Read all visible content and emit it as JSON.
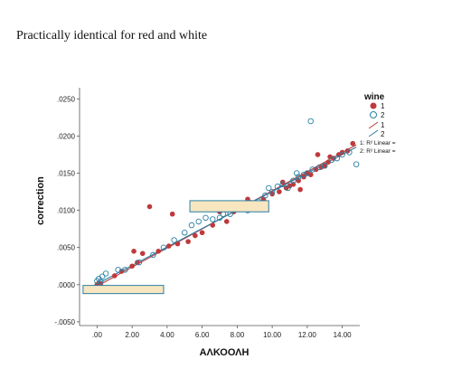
{
  "caption": "Practically identical for red and white",
  "chart_data": {
    "type": "scatter",
    "title": "",
    "xlabel": "ΑΛΚΟΟΛΗ",
    "ylabel": "correction",
    "xlim": [
      -1.0,
      15.0
    ],
    "ylim": [
      -0.0055,
      0.0265
    ],
    "x_ticks": [
      0,
      2,
      4,
      6,
      8,
      10,
      12,
      14
    ],
    "x_tick_labels": [
      ".00",
      "2.00",
      "4.00",
      "6.00",
      "8.00",
      "10.00",
      "12.00",
      "14.00"
    ],
    "y_ticks": [
      -0.005,
      0,
      0.005,
      0.01,
      0.015,
      0.02,
      0.025
    ],
    "y_tick_labels": [
      "-.0050",
      ".0000",
      ".0050",
      ".0100",
      ".0150",
      ".0200",
      ".0250"
    ],
    "grid": false,
    "legend_position": "top-right",
    "legend": {
      "title": "wine",
      "entries": [
        "1",
        "2",
        "1",
        "2"
      ],
      "fit_labels": [
        "1: R² Linear =",
        "2: R² Linear ="
      ]
    },
    "series": [
      {
        "name": "1",
        "marker": "filled-circle",
        "color": "#c0393b",
        "points": [
          [
            0.0,
            0.0
          ],
          [
            0.1,
            0.0002
          ],
          [
            0.2,
            0.0001
          ],
          [
            1.0,
            0.0012
          ],
          [
            1.4,
            0.0018
          ],
          [
            2.0,
            0.0025
          ],
          [
            2.1,
            0.0045
          ],
          [
            2.3,
            0.003
          ],
          [
            2.6,
            0.0042
          ],
          [
            3.0,
            0.0105
          ],
          [
            3.5,
            0.0045
          ],
          [
            4.1,
            0.0052
          ],
          [
            4.3,
            0.0095
          ],
          [
            4.6,
            0.0055
          ],
          [
            5.2,
            0.0058
          ],
          [
            5.6,
            0.0066
          ],
          [
            6.0,
            0.007
          ],
          [
            6.6,
            0.008
          ],
          [
            7.0,
            0.0098
          ],
          [
            7.4,
            0.0085
          ],
          [
            7.8,
            0.0098
          ],
          [
            8.2,
            0.0104
          ],
          [
            8.6,
            0.0115
          ],
          [
            9.0,
            0.011
          ],
          [
            9.5,
            0.0115
          ],
          [
            10.0,
            0.0122
          ],
          [
            10.4,
            0.0125
          ],
          [
            10.8,
            0.013
          ],
          [
            11.0,
            0.0133
          ],
          [
            11.2,
            0.0135
          ],
          [
            11.5,
            0.014
          ],
          [
            11.8,
            0.0145
          ],
          [
            12.0,
            0.015
          ],
          [
            12.2,
            0.0148
          ],
          [
            12.5,
            0.0155
          ],
          [
            12.8,
            0.0158
          ],
          [
            13.0,
            0.016
          ],
          [
            13.2,
            0.0165
          ],
          [
            13.5,
            0.017
          ],
          [
            13.8,
            0.0175
          ],
          [
            14.0,
            0.0178
          ],
          [
            14.3,
            0.018
          ],
          [
            14.6,
            0.019
          ],
          [
            12.6,
            0.0175
          ],
          [
            13.3,
            0.0172
          ],
          [
            11.6,
            0.0128
          ],
          [
            10.6,
            0.0138
          ]
        ]
      },
      {
        "name": "2",
        "marker": "open-circle",
        "color": "#2a7fa4",
        "points": [
          [
            0.0,
            0.0005
          ],
          [
            0.1,
            0.0008
          ],
          [
            0.2,
            0.0004
          ],
          [
            0.3,
            0.0011
          ],
          [
            0.5,
            0.0015
          ],
          [
            1.2,
            0.002
          ],
          [
            1.6,
            0.002
          ],
          [
            2.4,
            0.003
          ],
          [
            3.2,
            0.004
          ],
          [
            3.8,
            0.005
          ],
          [
            4.4,
            0.006
          ],
          [
            5.0,
            0.007
          ],
          [
            5.4,
            0.008
          ],
          [
            5.8,
            0.0085
          ],
          [
            6.2,
            0.009
          ],
          [
            6.6,
            0.0088
          ],
          [
            7.0,
            0.009
          ],
          [
            7.2,
            0.0095
          ],
          [
            7.6,
            0.0095
          ],
          [
            8.0,
            0.0105
          ],
          [
            8.4,
            0.0108
          ],
          [
            8.8,
            0.011
          ],
          [
            9.2,
            0.0112
          ],
          [
            9.6,
            0.012
          ],
          [
            10.0,
            0.0125
          ],
          [
            10.3,
            0.0132
          ],
          [
            10.6,
            0.0135
          ],
          [
            10.9,
            0.013
          ],
          [
            11.2,
            0.014
          ],
          [
            11.5,
            0.0145
          ],
          [
            11.8,
            0.0148
          ],
          [
            12.0,
            0.015
          ],
          [
            12.3,
            0.0155
          ],
          [
            12.7,
            0.0158
          ],
          [
            13.0,
            0.016
          ],
          [
            13.4,
            0.0168
          ],
          [
            13.7,
            0.017
          ],
          [
            14.0,
            0.0175
          ],
          [
            14.4,
            0.0178
          ],
          [
            14.8,
            0.0162
          ],
          [
            12.2,
            0.022
          ],
          [
            11.4,
            0.015
          ],
          [
            9.8,
            0.013
          ],
          [
            8.6,
            0.01
          ]
        ]
      }
    ],
    "fit_lines": [
      {
        "name": "1",
        "color": "#c0393b",
        "from": [
          0.0,
          -0.0002
        ],
        "to": [
          14.8,
          0.0188
        ]
      },
      {
        "name": "2",
        "color": "#2a7fa4",
        "from": [
          0.0,
          0.0001
        ],
        "to": [
          14.8,
          0.0185
        ]
      }
    ],
    "annotations": [
      {
        "type": "box",
        "fill": "#f7e6c0",
        "stroke": "#2a7fa4",
        "x0": -0.8,
        "x1": 3.8,
        "y0": -0.0012,
        "y1": -0.0001
      },
      {
        "type": "box",
        "fill": "#f7e6c0",
        "stroke": "#2a7fa4",
        "x0": 5.3,
        "x1": 9.8,
        "y0": 0.0098,
        "y1": 0.0113
      }
    ]
  }
}
